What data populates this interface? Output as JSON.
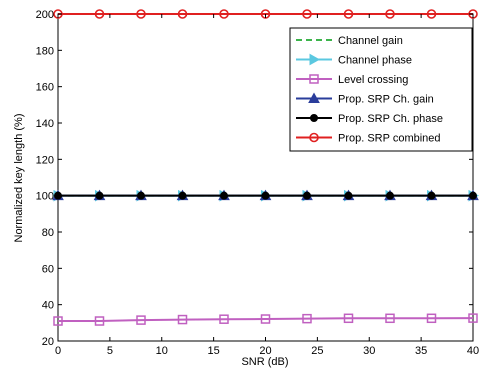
{
  "chart_data": {
    "type": "line",
    "xlabel": "SNR (dB)",
    "ylabel": "Normalized key length (%)",
    "xlim": [
      0,
      40
    ],
    "ylim": [
      20,
      200
    ],
    "xticks": [
      "0",
      "5",
      "10",
      "15",
      "20",
      "25",
      "30",
      "35",
      "40"
    ],
    "yticks": [
      "20",
      "40",
      "60",
      "80",
      "100",
      "120",
      "140",
      "160",
      "180",
      "200"
    ],
    "grid": false,
    "legend_position": "top-right",
    "x": [
      0,
      4,
      8,
      12,
      16,
      20,
      24,
      28,
      32,
      36,
      40
    ],
    "series": [
      {
        "name": "Channel gain",
        "color": "#3cb44b",
        "line": "dashed",
        "marker": "none",
        "values": [
          100,
          100,
          100,
          100,
          100,
          100,
          100,
          100,
          100,
          100,
          100
        ]
      },
      {
        "name": "Channel phase",
        "color": "#5bc8e0",
        "line": "solid",
        "marker": "triangle-right",
        "values": [
          100,
          100,
          100,
          100,
          100,
          100,
          100,
          100,
          100,
          100,
          100
        ]
      },
      {
        "name": "Level crossing",
        "color": "#c060c0",
        "line": "solid",
        "marker": "square",
        "values": [
          31,
          31,
          31.5,
          31.8,
          32,
          32.1,
          32.3,
          32.5,
          32.5,
          32.5,
          32.6
        ]
      },
      {
        "name": "Prop. SRP Ch. gain",
        "color": "#2a3d9b",
        "line": "solid",
        "marker": "triangle-up",
        "values": [
          100,
          100,
          100,
          100,
          100,
          100,
          100,
          100,
          100,
          100,
          100
        ]
      },
      {
        "name": "Prop. SRP Ch. phase",
        "color": "#000000",
        "line": "solid",
        "marker": "circle-filled",
        "values": [
          100,
          100,
          100,
          100,
          100,
          100,
          100,
          100,
          100,
          100,
          100
        ]
      },
      {
        "name": "Prop. SRP combined",
        "color": "#e02020",
        "line": "solid",
        "marker": "circle-open",
        "values": [
          200,
          200,
          200,
          200,
          200,
          200,
          200,
          200,
          200,
          200,
          200
        ]
      }
    ]
  }
}
